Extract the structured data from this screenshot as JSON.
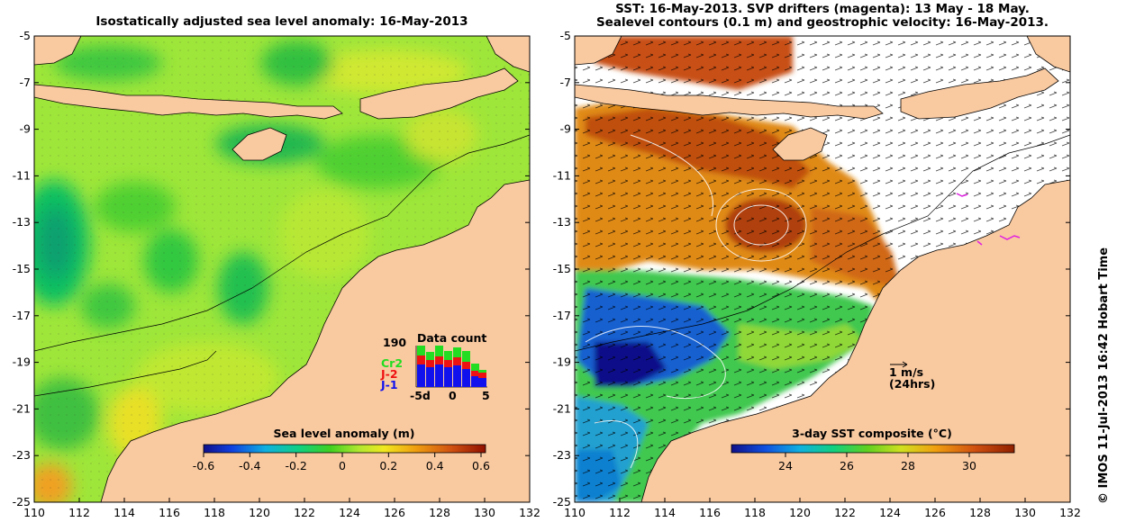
{
  "left_panel": {
    "title": "Isostatically adjusted sea level anomaly: 16-May-2013",
    "y_ticks": [
      "-5",
      "-7",
      "-9",
      "-11",
      "-13",
      "-15",
      "-17",
      "-19",
      "-21",
      "-23",
      "-25"
    ],
    "x_ticks": [
      "110",
      "112",
      "114",
      "116",
      "118",
      "120",
      "122",
      "124",
      "126",
      "128",
      "130",
      "132"
    ],
    "colorbar": {
      "label": "Sea level anomaly (m)",
      "ticks": [
        "-0.6",
        "-0.4",
        "-0.2",
        "0",
        "0.2",
        "0.4",
        "0.6"
      ],
      "range": [
        -0.6,
        0.6
      ]
    },
    "data_count": {
      "title": "Data count",
      "max_label": "190",
      "x_ticks": [
        "-5d",
        "0",
        "5"
      ],
      "legend": [
        {
          "name": "Cr2",
          "color": "#22dd22"
        },
        {
          "name": "J-2",
          "color": "#ee1111"
        },
        {
          "name": "J-1",
          "color": "#1111ee"
        }
      ]
    }
  },
  "right_panel": {
    "title_line1": "SST: 16-May-2013. SVP drifters (magenta): 13 May - 18 May.",
    "title_line2": "Sealevel contours (0.1 m) and geostrophic velocity: 16-May-2013.",
    "y_ticks": [
      "-5",
      "-7",
      "-9",
      "-11",
      "-13",
      "-15",
      "-17",
      "-19",
      "-21",
      "-23",
      "-25"
    ],
    "x_ticks": [
      "110",
      "112",
      "114",
      "116",
      "118",
      "120",
      "122",
      "124",
      "126",
      "128",
      "130",
      "132"
    ],
    "velocity_scale": {
      "label1": "1 m/s",
      "label2": "(24hrs)"
    },
    "colorbar": {
      "label": "3-day SST composite (°C)",
      "ticks": [
        "24",
        "26",
        "28",
        "30"
      ]
    }
  },
  "credit": "© IMOS 11-Jul-2013 16:42 Hobart Time",
  "colors": {
    "land": "#f9c9a0",
    "ocean_base": "#a8e63a",
    "warm_sst": "#c85010",
    "cool_sst": "#1080d0"
  }
}
